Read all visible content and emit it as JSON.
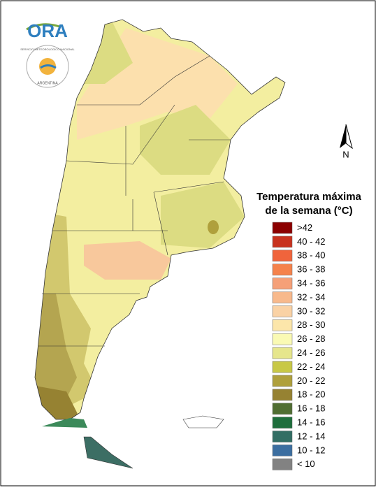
{
  "logo": {
    "text": "ORA",
    "seal_top": "SERVICIO METEOROLOGICO NACIONAL",
    "seal_bottom": "ARGENTINA"
  },
  "compass": {
    "label": "N"
  },
  "legend": {
    "title": [
      "Temperatura máxima",
      "de la semana (°C)"
    ],
    "items": [
      {
        "label": ">42",
        "color": "#8b0000"
      },
      {
        "label": "40 - 42",
        "color": "#c8321e"
      },
      {
        "label": "38 - 40",
        "color": "#f0643c"
      },
      {
        "label": "36 - 38",
        "color": "#f5824b"
      },
      {
        "label": "34 - 36",
        "color": "#f5a078"
      },
      {
        "label": "32 - 34",
        "color": "#f8b98c"
      },
      {
        "label": "30 - 32",
        "color": "#fad2a5"
      },
      {
        "label": "28 - 30",
        "color": "#fce6aa"
      },
      {
        "label": "26 - 28",
        "color": "#fafab4"
      },
      {
        "label": "24 - 26",
        "color": "#e6e68c"
      },
      {
        "label": "22 - 24",
        "color": "#c8c846"
      },
      {
        "label": "20 - 22",
        "color": "#afa03c"
      },
      {
        "label": "18 - 20",
        "color": "#968232"
      },
      {
        "label": "16 - 18",
        "color": "#506e32"
      },
      {
        "label": "14 - 16",
        "color": "#1e6e3c"
      },
      {
        "label": "12 - 14",
        "color": "#326e64"
      },
      {
        "label": "10 - 12",
        "color": "#3c6ea0"
      },
      {
        "label": "< 10",
        "color": "#828282"
      }
    ]
  }
}
